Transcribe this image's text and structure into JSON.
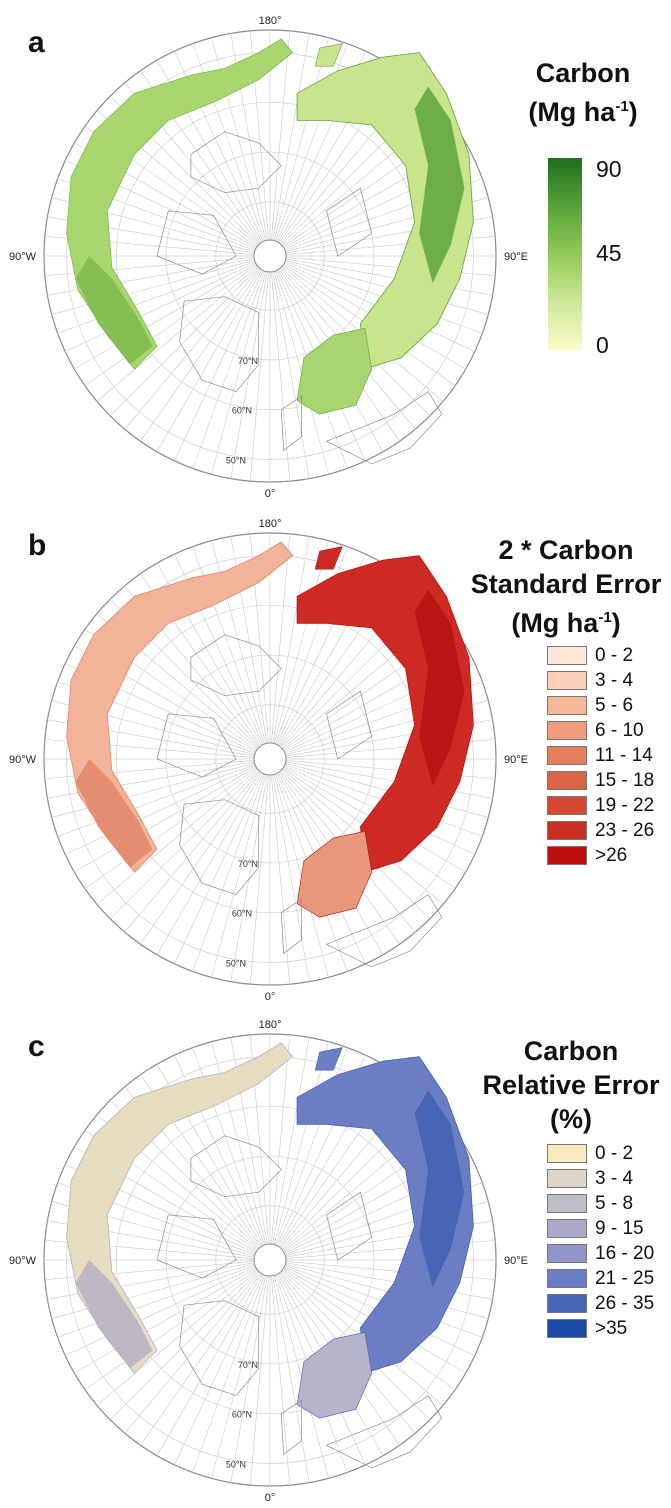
{
  "panels": [
    {
      "letter": "a",
      "legend": {
        "title_lines": [
          "Carbon"
        ],
        "unit_prefix": "(Mg ha",
        "unit_sup": "-1",
        "unit_suffix": ")"
      },
      "colorbar": {
        "ticks": [
          "90",
          "45",
          "0"
        ],
        "colors": [
          "#1f6e1c",
          "#93c956",
          "#fbfbc6"
        ]
      },
      "map": {
        "top_label": "180°",
        "bottom_label": "0°",
        "left_label": "90°W",
        "right_label": "90°E",
        "lat_labels": [
          "70°N",
          "60°N",
          "50°N"
        ],
        "palette": {
          "na": "#a8d66e",
          "na_dark": "#7fba4e",
          "asia": "#c8e48c",
          "asia_dark": "#5ea43c",
          "eu": "#a8d472"
        }
      }
    },
    {
      "letter": "b",
      "legend": {
        "title_lines": [
          "2 * Carbon",
          "Standard Error"
        ],
        "unit_prefix": "(Mg ha",
        "unit_sup": "-1",
        "unit_suffix": ")"
      },
      "classes": [
        {
          "label": "0 - 2",
          "color": "#fde7d8"
        },
        {
          "label": "3 - 4",
          "color": "#fbcfb5"
        },
        {
          "label": "5 - 6",
          "color": "#f6b799"
        },
        {
          "label": "6 - 10",
          "color": "#ee9c79"
        },
        {
          "label": "11 - 14",
          "color": "#e57f5d"
        },
        {
          "label": "15 - 18",
          "color": "#db6447"
        },
        {
          "label": "19 - 22",
          "color": "#d44834"
        },
        {
          "label": "23 - 26",
          "color": "#cb2d23"
        },
        {
          "label": ">26",
          "color": "#c00d0d"
        }
      ],
      "map": {
        "top_label": "180°",
        "bottom_label": "0°",
        "left_label": "90°W",
        "right_label": "90°E",
        "lat_labels": [
          "70°N",
          "60°N",
          "50°N"
        ],
        "palette": {
          "na": "#f1b39a",
          "na_dark": "#e2866a",
          "asia": "#cc2a22",
          "asia_dark": "#b51313",
          "eu": "#e8987a"
        }
      }
    },
    {
      "letter": "c",
      "legend": {
        "title_lines": [
          "Carbon",
          "Relative Error",
          "(%)"
        ]
      },
      "classes": [
        {
          "label": "0 - 2",
          "color": "#fbe8bf"
        },
        {
          "label": "3 - 4",
          "color": "#ddd5c8"
        },
        {
          "label": "5 - 8",
          "color": "#c0bdc6"
        },
        {
          "label": "9 - 15",
          "color": "#aaa9c7"
        },
        {
          "label": "16 - 20",
          "color": "#8f95c9"
        },
        {
          "label": "21 - 25",
          "color": "#6c7ec3"
        },
        {
          "label": "26 - 35",
          "color": "#4566b5"
        },
        {
          "label": ">35",
          "color": "#1a4ba4"
        }
      ],
      "map": {
        "top_label": "180°",
        "bottom_label": "0°",
        "left_label": "90°W",
        "right_label": "90°E",
        "lat_labels": [
          "70°N",
          "60°N",
          "50°N"
        ],
        "palette": {
          "na": "#e6dcc0",
          "na_dark": "#b5b0c4",
          "asia": "#6c7ec3",
          "asia_dark": "#3f62b3",
          "eu": "#b6b4c8"
        }
      }
    }
  ]
}
